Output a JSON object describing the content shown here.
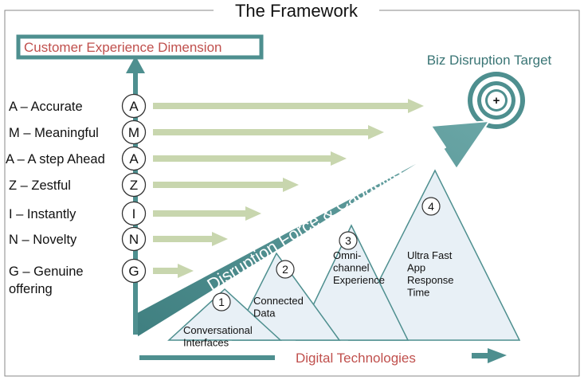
{
  "title": "The Framework",
  "y_axis": {
    "label": "Customer Experience Dimension"
  },
  "x_axis": {
    "label": "Digital Technologies"
  },
  "target": {
    "label": "Biz Disruption Target",
    "symbol": "+"
  },
  "force_arrow": {
    "label": "Disruption Force & Capability"
  },
  "dimensions": [
    {
      "letter": "A",
      "label_lines": [
        "A – Accurate"
      ]
    },
    {
      "letter": "M",
      "label_lines": [
        "M – Meaningful"
      ]
    },
    {
      "letter": "A",
      "label_lines": [
        "A – A step Ahead"
      ]
    },
    {
      "letter": "Z",
      "label_lines": [
        "Z – Zestful"
      ]
    },
    {
      "letter": "I",
      "label_lines": [
        "I – Instantly"
      ]
    },
    {
      "letter": "N",
      "label_lines": [
        "N – Novelty"
      ]
    },
    {
      "letter": "G",
      "label_lines": [
        "G – Genuine",
        "offering"
      ]
    }
  ],
  "technologies": [
    {
      "number": "1",
      "label_lines": [
        "Conversational",
        "Interfaces"
      ]
    },
    {
      "number": "2",
      "label_lines": [
        "Connected",
        "Data"
      ]
    },
    {
      "number": "3",
      "label_lines": [
        "Omni-",
        "channel",
        "Experience"
      ]
    },
    {
      "number": "4",
      "label_lines": [
        "Ultra Fast",
        "App",
        "Response",
        "Time"
      ]
    }
  ],
  "colors": {
    "teal": "#4e8f8f",
    "arrow_light": "#c8d6ae",
    "triangle_fill": "#e8f0f6",
    "triangle_stroke": "#4e8f8f",
    "title_red": "#c0504d",
    "text_dark": "#111111",
    "frame_gray": "#888888"
  }
}
